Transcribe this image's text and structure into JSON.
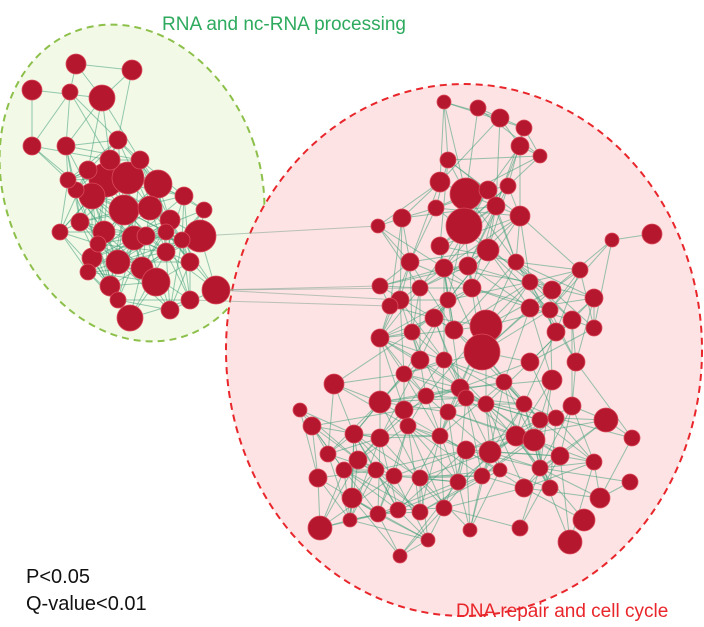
{
  "clusters": [
    {
      "id": "green",
      "label": "RNA and nc-RNA processing",
      "stroke": "#8cc04a",
      "fill": "#f3f9e7"
    },
    {
      "id": "red",
      "label": "DNA repair and cell cycle",
      "stroke": "#e8262b",
      "fill": "#fde3e3"
    }
  ],
  "stats": {
    "p": "P<0.05",
    "q": "Q-value<0.01"
  },
  "colors": {
    "node": "#b5172f",
    "node_stroke": "#d94a5a",
    "edge": "#3fa07a"
  }
}
